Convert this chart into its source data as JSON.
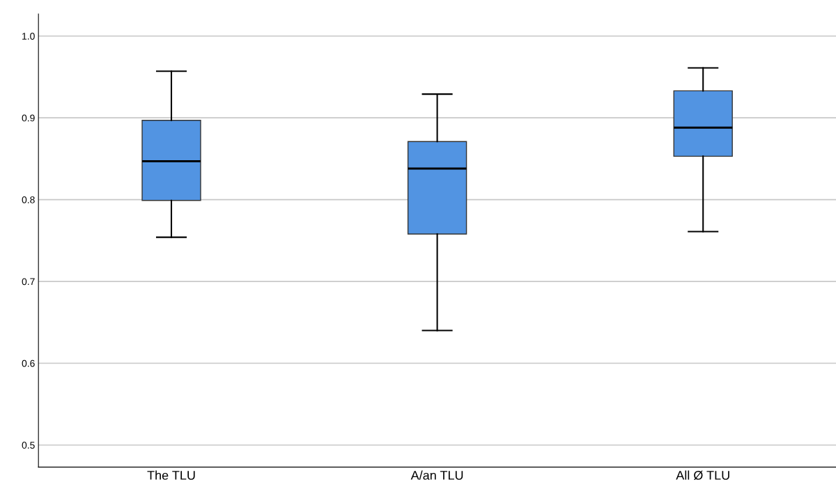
{
  "chart_data": {
    "type": "box",
    "categories": [
      "The TLU",
      "A/an TLU",
      "All Ø TLU"
    ],
    "boxes": [
      {
        "low": 0.754,
        "q1": 0.799,
        "median": 0.847,
        "q3": 0.897,
        "high": 0.957
      },
      {
        "low": 0.64,
        "q1": 0.758,
        "median": 0.838,
        "q3": 0.871,
        "high": 0.929
      },
      {
        "low": 0.761,
        "q1": 0.853,
        "median": 0.888,
        "q3": 0.933,
        "high": 0.961
      }
    ],
    "color": "#5294e2",
    "ylim": [
      0.473,
      1.027
    ],
    "yticks": [
      {
        "value": 0.5,
        "label": "0.5"
      },
      {
        "value": 0.6,
        "label": "0.6"
      },
      {
        "value": 0.7,
        "label": "0.7"
      },
      {
        "value": 0.8,
        "label": "0.8"
      },
      {
        "value": 0.9,
        "label": "0.9"
      },
      {
        "value": 1.0,
        "label": "1.0"
      }
    ],
    "grid": "y"
  }
}
